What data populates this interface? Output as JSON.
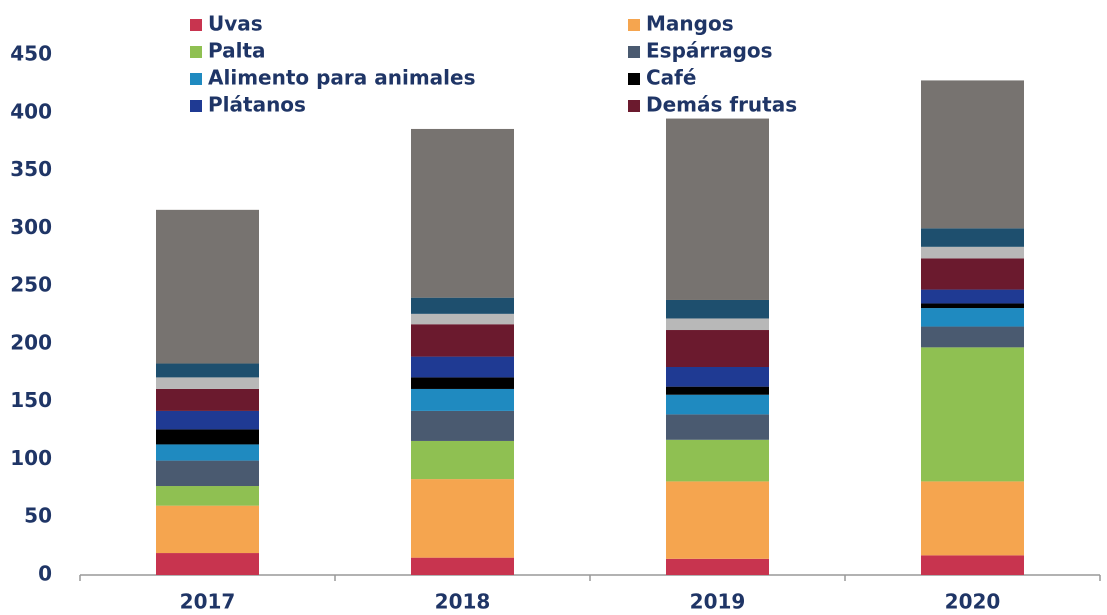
{
  "chart_data": {
    "type": "stacked_bar",
    "categories": [
      "2017",
      "2018",
      "2019",
      "2020"
    ],
    "ylim": [
      0,
      450
    ],
    "yticks": [
      0,
      50,
      100,
      150,
      200,
      250,
      300,
      350,
      400,
      450
    ],
    "series": [
      {
        "name": "Uvas",
        "color": "#c8344f",
        "values": [
          19,
          15,
          14,
          17
        ]
      },
      {
        "name": "Mangos",
        "color": "#f5a54f",
        "values": [
          41,
          68,
          67,
          64
        ]
      },
      {
        "name": "Palta",
        "color": "#8fc052",
        "values": [
          17,
          33,
          36,
          116
        ]
      },
      {
        "name": "Espárragos",
        "color": "#4a5a70",
        "values": [
          22,
          26,
          22,
          18
        ]
      },
      {
        "name": "Alimento para animales",
        "color": "#1f8ac0",
        "values": [
          14,
          19,
          17,
          16
        ]
      },
      {
        "name": "Café",
        "color": "#000000",
        "values": [
          13,
          10,
          7,
          4
        ]
      },
      {
        "name": "Plátanos",
        "color": "#1f3a93",
        "values": [
          16,
          18,
          17,
          12
        ]
      },
      {
        "name": "Demás frutas",
        "color": "#6b1a2e",
        "values": [
          19,
          28,
          32,
          27
        ]
      },
      {
        "color": "#b8b8b8",
        "values": [
          10,
          9,
          10,
          10
        ]
      },
      {
        "color": "#1e4f6e",
        "values": [
          12,
          14,
          16,
          16
        ]
      },
      {
        "color": "#777370",
        "values": [
          133,
          146,
          157,
          128
        ]
      }
    ]
  }
}
